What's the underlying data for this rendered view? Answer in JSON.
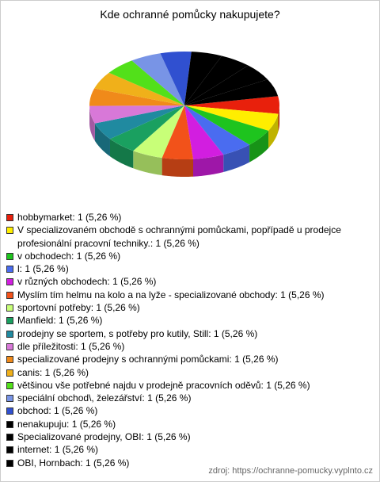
{
  "chart_data": {
    "type": "pie3d",
    "title": "Kde ochranné pomůcky nakupujete?",
    "categories": [
      "hobbymarket: 1 (5,26 %)",
      "V specializovaném obchodě s ochrannými pomůckami, popřípadě u prodejce profesionální pracovní techniky.: 1 (5,26 %)",
      "v obchodech: 1 (5,26 %)",
      "l: 1 (5,26 %)",
      "v různých obchodech: 1 (5,26 %)",
      "Myslím tím helmu na kolo a na lyže - specializované obchody: 1 (5,26 %)",
      "sportovní potřeby: 1 (5,26 %)",
      "Manfield: 1 (5,26 %)",
      "prodejny se sportem, s potřeby pro kutily, Still: 1 (5,26 %)",
      "dle příležitosti: 1 (5,26 %)",
      "specializované prodejny s ochrannými pomůckami: 1 (5,26 %)",
      "canis: 1 (5,26 %)",
      "většinou vše potřebné najdu v prodejně pracovních oděvů: 1 (5,26 %)",
      "speciální obchod\\, železářství: 1 (5,26 %)",
      "obchod: 1 (5,26 %)",
      "nenakupuju: 1 (5,26 %)",
      "Specializované prodejny, OBI: 1 (5,26 %)",
      "internet: 1 (5,26 %)",
      "OBI, Hornbach: 1 (5,26 %)"
    ],
    "values": [
      1,
      1,
      1,
      1,
      1,
      1,
      1,
      1,
      1,
      1,
      1,
      1,
      1,
      1,
      1,
      1,
      1,
      1,
      1
    ],
    "colors": [
      "#e8200c",
      "#ffee00",
      "#1ec41e",
      "#4a6cf0",
      "#d21ee0",
      "#f2521a",
      "#c8ff78",
      "#1aa060",
      "#208aa0",
      "#d878d8",
      "#f08a1a",
      "#f0b01a",
      "#52e01a",
      "#7894e6",
      "#3050d0",
      "#000000",
      "#000000",
      "#000000",
      "#000000"
    ],
    "source": "zdroj: https://ochranne-pomucky.vyplnto.cz"
  }
}
